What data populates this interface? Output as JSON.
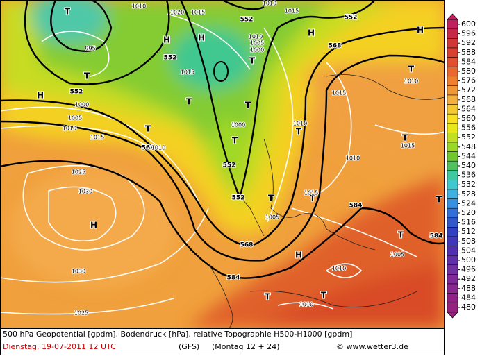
{
  "map": {
    "labels": [
      "T",
      "1010",
      "1020",
      "1015",
      "552",
      "1010",
      "1015",
      "552",
      "H",
      "H",
      "1010",
      "1005",
      "1000",
      "552",
      "H",
      "568",
      "H",
      "995",
      "T",
      "552",
      "H",
      "1015",
      "T",
      "T",
      "1010",
      "1015",
      "1000",
      "1005",
      "1010",
      "1015",
      "T",
      "T",
      "1000",
      "T",
      "T",
      "568",
      "1010",
      "T",
      "1010",
      "552",
      "1010",
      "1015",
      "T",
      "1025",
      "1030",
      "552",
      "T",
      "T",
      "1015",
      "1005",
      "584",
      "T",
      "H",
      "T",
      "568",
      "H",
      "584",
      "1005",
      "1030",
      "584",
      "1010",
      "T",
      "T",
      "1010",
      "1025"
    ]
  },
  "colorbar": {
    "ticks": [
      600,
      596,
      592,
      588,
      584,
      580,
      576,
      572,
      568,
      564,
      560,
      556,
      552,
      548,
      544,
      540,
      536,
      532,
      528,
      524,
      520,
      516,
      512,
      508,
      504,
      500,
      496,
      492,
      488,
      484,
      480
    ],
    "colors": [
      "#c02060",
      "#c82848",
      "#d03838",
      "#d84030",
      "#e05030",
      "#e86830",
      "#ee8030",
      "#f09838",
      "#f4b040",
      "#f4c830",
      "#f8e020",
      "#e8e818",
      "#c0e020",
      "#98d828",
      "#70c830",
      "#50c060",
      "#40c8a0",
      "#40c8d0",
      "#40b0e0",
      "#3890e0",
      "#3070d8",
      "#3058c8",
      "#3040c0",
      "#4038b8",
      "#5030b0",
      "#6030a8",
      "#7030a0",
      "#802898",
      "#882890",
      "#902088",
      "#982080"
    ]
  },
  "footer": {
    "line1": "500 hPa Geopotential [gpdm], Bodendruck [hPa], relative Topographie H500-H1000 [gpdm]",
    "date": "Dienstag, 19-07-2011  12 UTC",
    "model": "(GFS)",
    "run": "(Montag 12 + 24)",
    "credit": "© www.wetter3.de"
  }
}
